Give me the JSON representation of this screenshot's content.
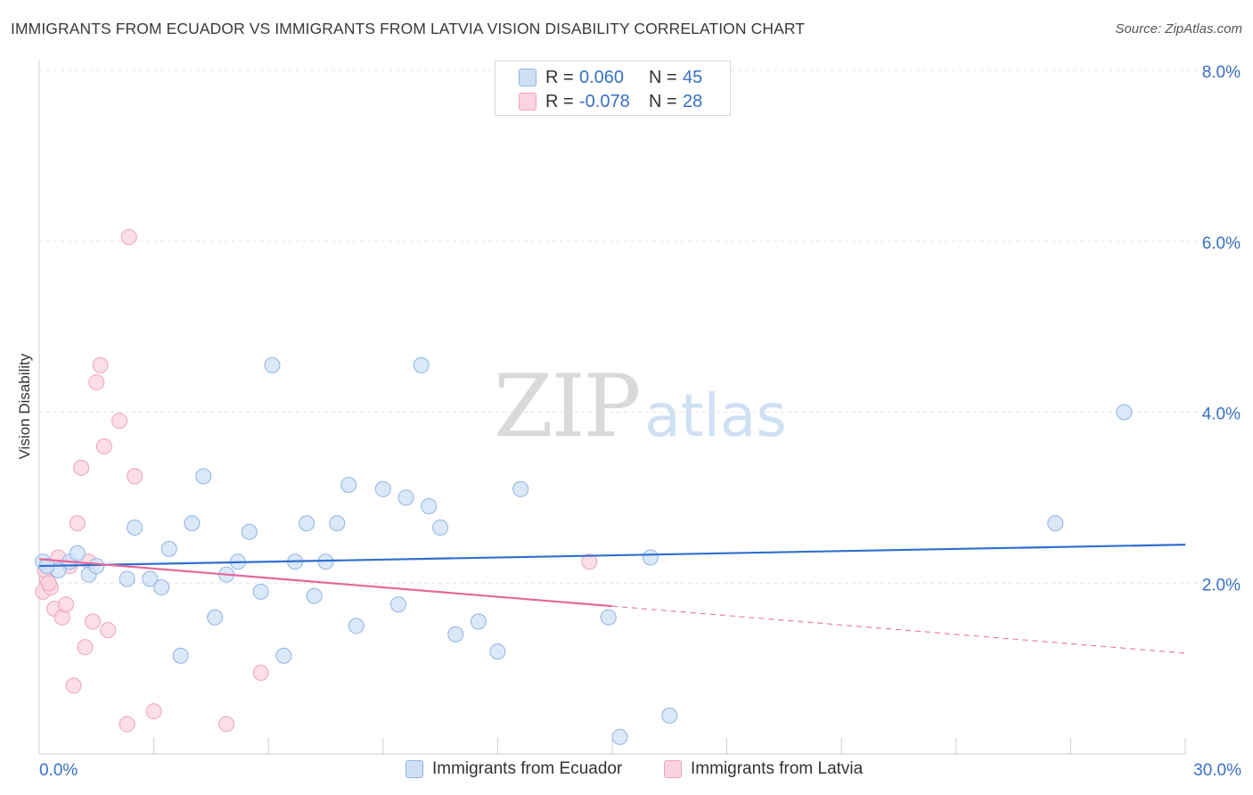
{
  "header": {
    "title": "IMMIGRANTS FROM ECUADOR VS IMMIGRANTS FROM LATVIA VISION DISABILITY CORRELATION CHART",
    "source": "Source: ZipAtlas.com"
  },
  "watermark": {
    "zip": "ZIP",
    "atlas": "atlas"
  },
  "legend": {
    "rows": [
      {
        "r_label": "R =",
        "r_value": "0.060",
        "n_label": "N =",
        "n_value": "45",
        "color": "#9dc0ec"
      },
      {
        "r_label": "R =",
        "r_value": "-0.078",
        "n_label": "N =",
        "n_value": "28",
        "color": "#f5b3c8"
      }
    ]
  },
  "bottom_legend": {
    "ecuador": "Immigrants from Ecuador",
    "latvia": "Immigrants from Latvia"
  },
  "colors": {
    "ecuador_fill": "#cfe0f5",
    "ecuador_stroke": "#8fb4e3",
    "ecuador_line": "#2f6fcf",
    "latvia_fill": "#fbd3df",
    "latvia_stroke": "#eea3bb",
    "latvia_line": "#e4679a",
    "tick_text": "#3a6fc6"
  },
  "chart_data": {
    "type": "scatter",
    "title": "IMMIGRANTS FROM ECUADOR VS IMMIGRANTS FROM LATVIA VISION DISABILITY CORRELATION CHART",
    "xlabel": "",
    "ylabel": "Vision Disability",
    "xlim": [
      0,
      30
    ],
    "ylim": [
      0,
      8
    ],
    "x_tick_labels": [
      "0.0%",
      "30.0%"
    ],
    "y_ticks": [
      2,
      4,
      6,
      8
    ],
    "y_tick_labels": [
      "2.0%",
      "4.0%",
      "6.0%",
      "8.0%"
    ],
    "grid": true,
    "legend_placement": "top-center",
    "series": [
      {
        "name": "Immigrants from Ecuador",
        "points": [
          [
            0.1,
            2.25
          ],
          [
            0.5,
            2.15
          ],
          [
            0.8,
            2.25
          ],
          [
            1.0,
            2.35
          ],
          [
            1.3,
            2.1
          ],
          [
            1.5,
            2.2
          ],
          [
            2.3,
            2.05
          ],
          [
            2.5,
            2.65
          ],
          [
            2.9,
            2.05
          ],
          [
            3.2,
            1.95
          ],
          [
            3.4,
            2.4
          ],
          [
            3.7,
            1.15
          ],
          [
            4.0,
            2.7
          ],
          [
            4.3,
            3.25
          ],
          [
            4.6,
            1.6
          ],
          [
            4.9,
            2.1
          ],
          [
            5.2,
            2.25
          ],
          [
            5.5,
            2.6
          ],
          [
            5.8,
            1.9
          ],
          [
            6.1,
            4.55
          ],
          [
            6.4,
            1.15
          ],
          [
            6.7,
            2.25
          ],
          [
            7.0,
            2.7
          ],
          [
            7.2,
            1.85
          ],
          [
            7.5,
            2.25
          ],
          [
            7.8,
            2.7
          ],
          [
            8.1,
            3.15
          ],
          [
            8.3,
            1.5
          ],
          [
            9.0,
            3.1
          ],
          [
            9.4,
            1.75
          ],
          [
            9.6,
            3.0
          ],
          [
            10.0,
            4.55
          ],
          [
            10.2,
            2.9
          ],
          [
            10.5,
            2.65
          ],
          [
            10.9,
            1.4
          ],
          [
            11.5,
            1.55
          ],
          [
            12.0,
            1.2
          ],
          [
            12.6,
            3.1
          ],
          [
            14.9,
            1.6
          ],
          [
            15.2,
            0.2
          ],
          [
            16.0,
            2.3
          ],
          [
            16.5,
            0.45
          ],
          [
            26.6,
            2.7
          ],
          [
            28.4,
            4.0
          ],
          [
            0.2,
            2.2
          ]
        ],
        "trend": {
          "x0": 0,
          "y0": 2.2,
          "x1": 30,
          "y1": 2.45
        }
      },
      {
        "name": "Immigrants from Latvia",
        "points": [
          [
            0.1,
            1.9
          ],
          [
            0.2,
            2.05
          ],
          [
            0.3,
            1.95
          ],
          [
            0.4,
            1.7
          ],
          [
            0.5,
            2.3
          ],
          [
            0.6,
            1.6
          ],
          [
            0.7,
            1.75
          ],
          [
            0.8,
            2.2
          ],
          [
            0.9,
            0.8
          ],
          [
            1.0,
            2.7
          ],
          [
            1.1,
            3.35
          ],
          [
            1.2,
            1.25
          ],
          [
            1.3,
            2.25
          ],
          [
            1.4,
            1.55
          ],
          [
            1.5,
            4.35
          ],
          [
            1.6,
            4.55
          ],
          [
            1.7,
            3.6
          ],
          [
            1.8,
            1.45
          ],
          [
            2.1,
            3.9
          ],
          [
            2.3,
            0.35
          ],
          [
            2.35,
            6.05
          ],
          [
            2.5,
            3.25
          ],
          [
            3.0,
            0.5
          ],
          [
            4.9,
            0.35
          ],
          [
            5.8,
            0.95
          ],
          [
            14.4,
            2.25
          ],
          [
            0.15,
            2.15
          ],
          [
            0.25,
            2.0
          ]
        ],
        "trend": {
          "x0": 0,
          "y0": 2.28,
          "x1": 15,
          "y1": 1.73,
          "dash_x1": 30,
          "dash_y1": 1.18
        }
      }
    ]
  }
}
